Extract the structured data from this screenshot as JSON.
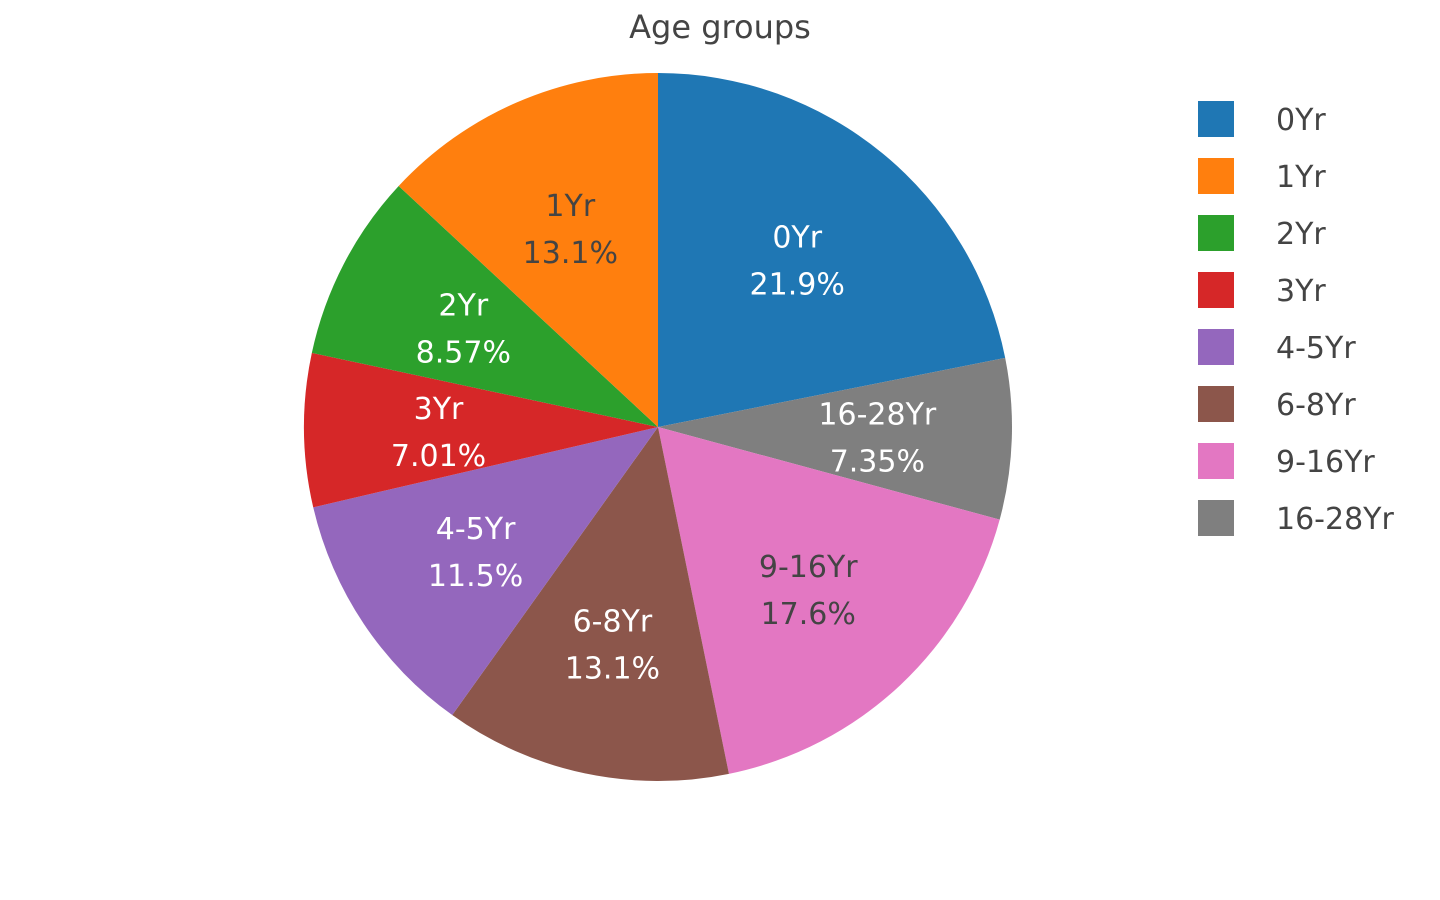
{
  "chart_data": {
    "type": "pie",
    "title": "Age groups",
    "direction": "clockwise",
    "start_angle_deg": 0,
    "sort": "none",
    "slices": [
      {
        "label": "0Yr",
        "value": 21.9,
        "percent_text": "21.9%",
        "color": "#1f77b4",
        "text_color": "#ffffff"
      },
      {
        "label": "16-28Yr",
        "value": 7.35,
        "percent_text": "7.35%",
        "color": "#7f7f7f",
        "text_color": "#ffffff"
      },
      {
        "label": "9-16Yr",
        "value": 17.6,
        "percent_text": "17.6%",
        "color": "#e377c2",
        "text_color": "#444444"
      },
      {
        "label": "6-8Yr",
        "value": 13.1,
        "percent_text": "13.1%",
        "color": "#8c564b",
        "text_color": "#ffffff"
      },
      {
        "label": "4-5Yr",
        "value": 11.5,
        "percent_text": "11.5%",
        "color": "#9467bd",
        "text_color": "#ffffff"
      },
      {
        "label": "3Yr",
        "value": 7.01,
        "percent_text": "7.01%",
        "color": "#d62728",
        "text_color": "#ffffff"
      },
      {
        "label": "2Yr",
        "value": 8.57,
        "percent_text": "8.57%",
        "color": "#2ca02c",
        "text_color": "#ffffff"
      },
      {
        "label": "1Yr",
        "value": 13.1,
        "percent_text": "13.1%",
        "color": "#ff7f0e",
        "text_color": "#444444"
      }
    ],
    "legend": {
      "placement": "right",
      "entries": [
        {
          "label": "0Yr",
          "color": "#1f77b4"
        },
        {
          "label": "1Yr",
          "color": "#ff7f0e"
        },
        {
          "label": "2Yr",
          "color": "#2ca02c"
        },
        {
          "label": "3Yr",
          "color": "#d62728"
        },
        {
          "label": "4-5Yr",
          "color": "#9467bd"
        },
        {
          "label": "6-8Yr",
          "color": "#8c564b"
        },
        {
          "label": "9-16Yr",
          "color": "#e377c2"
        },
        {
          "label": "16-28Yr",
          "color": "#7f7f7f"
        }
      ]
    }
  }
}
